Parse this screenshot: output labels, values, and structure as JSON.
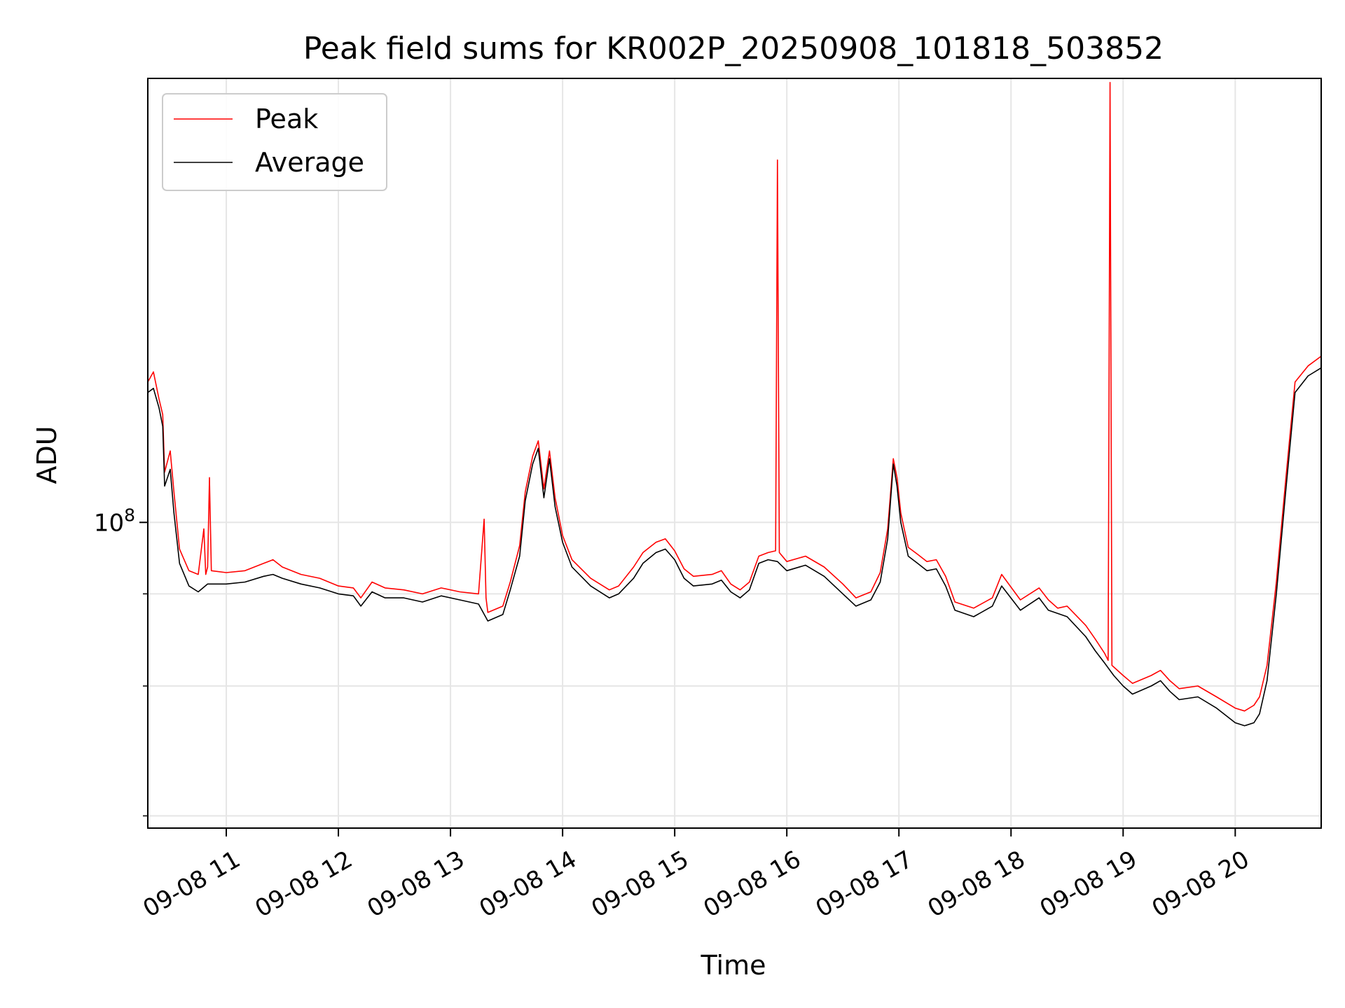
{
  "chart_data": {
    "type": "line",
    "title": "Peak field sums for KR002P_20250908_101818_503852",
    "xlabel": "Time",
    "ylabel": "ADU",
    "x_range": [
      "2025-09-08 10:18",
      "2025-09-08 20:46"
    ],
    "x_tick_labels": [
      "09-08 11",
      "09-08 12",
      "09-08 13",
      "09-08 14",
      "09-08 15",
      "09-08 16",
      "09-08 17",
      "09-08 18",
      "09-08 19",
      "09-08 20"
    ],
    "x_ticks": [
      "2025-09-08 11:00",
      "2025-09-08 12:00",
      "2025-09-08 13:00",
      "2025-09-08 14:00",
      "2025-09-08 15:00",
      "2025-09-08 16:00",
      "2025-09-08 17:00",
      "2025-09-08 18:00",
      "2025-09-08 19:00",
      "2025-09-08 20:00"
    ],
    "y_scale": "log",
    "ylim": [
      38500000,
      400000000
    ],
    "y_major_ticks": [
      {
        "value": 100000000,
        "base": "10",
        "exponent": "8"
      }
    ],
    "y_minor_ticks": [
      40000000,
      60000000,
      80000000
    ],
    "grid": true,
    "legend_position": "top-left",
    "legend": [
      "Peak",
      "Average"
    ],
    "colors": {
      "Peak": "#ff0000",
      "Average": "#000000"
    },
    "series": [
      {
        "name": "Average",
        "points": [
          [
            "2025-09-08 10:18",
            150000000
          ],
          [
            "2025-09-08 10:21",
            152000000
          ],
          [
            "2025-09-08 10:24",
            143000000
          ],
          [
            "2025-09-08 10:26",
            135000000
          ],
          [
            "2025-09-08 10:27",
            112000000
          ],
          [
            "2025-09-08 10:30",
            118000000
          ],
          [
            "2025-09-08 10:32",
            103000000
          ],
          [
            "2025-09-08 10:35",
            88000000
          ],
          [
            "2025-09-08 10:40",
            82000000
          ],
          [
            "2025-09-08 10:45",
            80500000
          ],
          [
            "2025-09-08 10:50",
            82500000
          ],
          [
            "2025-09-08 11:00",
            82500000
          ],
          [
            "2025-09-08 11:10",
            83000000
          ],
          [
            "2025-09-08 11:20",
            84500000
          ],
          [
            "2025-09-08 11:25",
            85000000
          ],
          [
            "2025-09-08 11:30",
            84000000
          ],
          [
            "2025-09-08 11:40",
            82500000
          ],
          [
            "2025-09-08 11:50",
            81500000
          ],
          [
            "2025-09-08 12:00",
            80000000
          ],
          [
            "2025-09-08 12:08",
            79500000
          ],
          [
            "2025-09-08 12:12",
            77000000
          ],
          [
            "2025-09-08 12:18",
            80500000
          ],
          [
            "2025-09-08 12:25",
            79000000
          ],
          [
            "2025-09-08 12:35",
            79000000
          ],
          [
            "2025-09-08 12:45",
            78000000
          ],
          [
            "2025-09-08 12:55",
            79500000
          ],
          [
            "2025-09-08 13:05",
            78500000
          ],
          [
            "2025-09-08 13:15",
            77500000
          ],
          [
            "2025-09-08 13:20",
            73500000
          ],
          [
            "2025-09-08 13:28",
            75000000
          ],
          [
            "2025-09-08 13:32",
            81000000
          ],
          [
            "2025-09-08 13:37",
            90000000
          ],
          [
            "2025-09-08 13:40",
            107000000
          ],
          [
            "2025-09-08 13:44",
            120000000
          ],
          [
            "2025-09-08 13:47",
            126000000
          ],
          [
            "2025-09-08 13:50",
            108000000
          ],
          [
            "2025-09-08 13:53",
            122000000
          ],
          [
            "2025-09-08 13:56",
            105000000
          ],
          [
            "2025-09-08 14:00",
            94000000
          ],
          [
            "2025-09-08 14:05",
            87000000
          ],
          [
            "2025-09-08 14:15",
            82000000
          ],
          [
            "2025-09-08 14:25",
            79000000
          ],
          [
            "2025-09-08 14:30",
            80000000
          ],
          [
            "2025-09-08 14:38",
            84000000
          ],
          [
            "2025-09-08 14:43",
            88000000
          ],
          [
            "2025-09-08 14:50",
            91000000
          ],
          [
            "2025-09-08 14:55",
            92000000
          ],
          [
            "2025-09-08 15:00",
            89000000
          ],
          [
            "2025-09-08 15:05",
            84000000
          ],
          [
            "2025-09-08 15:10",
            82000000
          ],
          [
            "2025-09-08 15:20",
            82500000
          ],
          [
            "2025-09-08 15:25",
            83500000
          ],
          [
            "2025-09-08 15:30",
            80500000
          ],
          [
            "2025-09-08 15:35",
            79000000
          ],
          [
            "2025-09-08 15:40",
            81000000
          ],
          [
            "2025-09-08 15:45",
            88000000
          ],
          [
            "2025-09-08 15:50",
            89000000
          ],
          [
            "2025-09-08 15:55",
            88500000
          ],
          [
            "2025-09-08 16:00",
            86000000
          ],
          [
            "2025-09-08 16:10",
            87500000
          ],
          [
            "2025-09-08 16:20",
            84500000
          ],
          [
            "2025-09-08 16:30",
            80000000
          ],
          [
            "2025-09-08 16:37",
            77000000
          ],
          [
            "2025-09-08 16:45",
            78500000
          ],
          [
            "2025-09-08 16:50",
            83000000
          ],
          [
            "2025-09-08 16:54",
            95000000
          ],
          [
            "2025-09-08 16:57",
            120000000
          ],
          [
            "2025-09-08 16:59",
            112000000
          ],
          [
            "2025-09-08 17:01",
            100000000
          ],
          [
            "2025-09-08 17:05",
            90000000
          ],
          [
            "2025-09-08 17:10",
            88000000
          ],
          [
            "2025-09-08 17:15",
            86000000
          ],
          [
            "2025-09-08 17:20",
            86500000
          ],
          [
            "2025-09-08 17:25",
            82000000
          ],
          [
            "2025-09-08 17:30",
            76000000
          ],
          [
            "2025-09-08 17:40",
            74500000
          ],
          [
            "2025-09-08 17:50",
            77000000
          ],
          [
            "2025-09-08 17:55",
            82000000
          ],
          [
            "2025-09-08 18:05",
            76000000
          ],
          [
            "2025-09-08 18:15",
            79000000
          ],
          [
            "2025-09-08 18:20",
            76000000
          ],
          [
            "2025-09-08 18:30",
            74500000
          ],
          [
            "2025-09-08 18:40",
            70000000
          ],
          [
            "2025-09-08 18:45",
            67000000
          ],
          [
            "2025-09-08 18:50",
            64500000
          ],
          [
            "2025-09-08 18:55",
            62000000
          ],
          [
            "2025-09-08 19:00",
            60000000
          ],
          [
            "2025-09-08 19:05",
            58500000
          ],
          [
            "2025-09-08 19:15",
            60000000
          ],
          [
            "2025-09-08 19:20",
            61000000
          ],
          [
            "2025-09-08 19:25",
            59000000
          ],
          [
            "2025-09-08 19:30",
            57500000
          ],
          [
            "2025-09-08 19:40",
            58000000
          ],
          [
            "2025-09-08 19:50",
            56000000
          ],
          [
            "2025-09-08 20:00",
            53500000
          ],
          [
            "2025-09-08 20:05",
            53000000
          ],
          [
            "2025-09-08 20:10",
            53500000
          ],
          [
            "2025-09-08 20:13",
            55000000
          ],
          [
            "2025-09-08 20:17",
            61000000
          ],
          [
            "2025-09-08 20:22",
            80000000
          ],
          [
            "2025-09-08 20:27",
            110000000
          ],
          [
            "2025-09-08 20:32",
            150000000
          ],
          [
            "2025-09-08 20:39",
            158000000
          ],
          [
            "2025-09-08 20:46",
            162000000
          ]
        ]
      },
      {
        "name": "Peak",
        "points": [
          [
            "2025-09-08 10:18",
            155000000
          ],
          [
            "2025-09-08 10:21",
            160000000
          ],
          [
            "2025-09-08 10:24",
            147000000
          ],
          [
            "2025-09-08 10:26",
            140000000
          ],
          [
            "2025-09-08 10:27",
            117000000
          ],
          [
            "2025-09-08 10:30",
            125000000
          ],
          [
            "2025-09-08 10:32",
            110000000
          ],
          [
            "2025-09-08 10:35",
            92000000
          ],
          [
            "2025-09-08 10:40",
            86000000
          ],
          [
            "2025-09-08 10:45",
            85000000
          ],
          [
            "2025-09-08 10:48",
            98000000
          ],
          [
            "2025-09-08 10:49",
            85000000
          ],
          [
            "2025-09-08 10:50",
            87000000
          ],
          [
            "2025-09-08 10:51",
            115000000
          ],
          [
            "2025-09-08 10:52",
            86000000
          ],
          [
            "2025-09-08 11:00",
            85500000
          ],
          [
            "2025-09-08 11:10",
            86000000
          ],
          [
            "2025-09-08 11:20",
            88000000
          ],
          [
            "2025-09-08 11:25",
            89000000
          ],
          [
            "2025-09-08 11:30",
            87000000
          ],
          [
            "2025-09-08 11:40",
            85000000
          ],
          [
            "2025-09-08 11:50",
            84000000
          ],
          [
            "2025-09-08 12:00",
            82000000
          ],
          [
            "2025-09-08 12:08",
            81500000
          ],
          [
            "2025-09-08 12:12",
            79000000
          ],
          [
            "2025-09-08 12:18",
            83000000
          ],
          [
            "2025-09-08 12:25",
            81500000
          ],
          [
            "2025-09-08 12:35",
            81000000
          ],
          [
            "2025-09-08 12:45",
            80000000
          ],
          [
            "2025-09-08 12:55",
            81500000
          ],
          [
            "2025-09-08 13:05",
            80500000
          ],
          [
            "2025-09-08 13:15",
            80000000
          ],
          [
            "2025-09-08 13:18",
            101000000
          ],
          [
            "2025-09-08 13:19",
            79000000
          ],
          [
            "2025-09-08 13:20",
            75500000
          ],
          [
            "2025-09-08 13:28",
            77000000
          ],
          [
            "2025-09-08 13:32",
            83000000
          ],
          [
            "2025-09-08 13:37",
            93000000
          ],
          [
            "2025-09-08 13:40",
            110000000
          ],
          [
            "2025-09-08 13:44",
            123000000
          ],
          [
            "2025-09-08 13:47",
            129000000
          ],
          [
            "2025-09-08 13:50",
            111000000
          ],
          [
            "2025-09-08 13:53",
            125000000
          ],
          [
            "2025-09-08 13:56",
            108000000
          ],
          [
            "2025-09-08 14:00",
            96000000
          ],
          [
            "2025-09-08 14:05",
            89000000
          ],
          [
            "2025-09-08 14:15",
            84000000
          ],
          [
            "2025-09-08 14:25",
            81000000
          ],
          [
            "2025-09-08 14:30",
            82000000
          ],
          [
            "2025-09-08 14:38",
            87000000
          ],
          [
            "2025-09-08 14:43",
            91000000
          ],
          [
            "2025-09-08 14:50",
            94000000
          ],
          [
            "2025-09-08 14:55",
            95000000
          ],
          [
            "2025-09-08 15:00",
            91500000
          ],
          [
            "2025-09-08 15:05",
            86500000
          ],
          [
            "2025-09-08 15:10",
            84500000
          ],
          [
            "2025-09-08 15:20",
            85000000
          ],
          [
            "2025-09-08 15:25",
            86000000
          ],
          [
            "2025-09-08 15:30",
            82500000
          ],
          [
            "2025-09-08 15:35",
            81000000
          ],
          [
            "2025-09-08 15:40",
            83000000
          ],
          [
            "2025-09-08 15:45",
            90000000
          ],
          [
            "2025-09-08 15:50",
            91000000
          ],
          [
            "2025-09-08 15:54",
            91500000
          ],
          [
            "2025-09-08 15:55",
            310000000
          ],
          [
            "2025-09-08 15:56",
            91000000
          ],
          [
            "2025-09-08 16:00",
            88500000
          ],
          [
            "2025-09-08 16:10",
            90000000
          ],
          [
            "2025-09-08 16:20",
            87000000
          ],
          [
            "2025-09-08 16:30",
            82500000
          ],
          [
            "2025-09-08 16:37",
            79000000
          ],
          [
            "2025-09-08 16:45",
            80500000
          ],
          [
            "2025-09-08 16:50",
            85500000
          ],
          [
            "2025-09-08 16:54",
            98000000
          ],
          [
            "2025-09-08 16:57",
            122000000
          ],
          [
            "2025-09-08 16:59",
            115000000
          ],
          [
            "2025-09-08 17:01",
            103000000
          ],
          [
            "2025-09-08 17:05",
            92500000
          ],
          [
            "2025-09-08 17:10",
            90500000
          ],
          [
            "2025-09-08 17:15",
            88500000
          ],
          [
            "2025-09-08 17:20",
            89000000
          ],
          [
            "2025-09-08 17:25",
            84500000
          ],
          [
            "2025-09-08 17:30",
            78000000
          ],
          [
            "2025-09-08 17:40",
            76500000
          ],
          [
            "2025-09-08 17:50",
            79000000
          ],
          [
            "2025-09-08 17:55",
            85000000
          ],
          [
            "2025-09-08 18:05",
            78500000
          ],
          [
            "2025-09-08 18:15",
            81500000
          ],
          [
            "2025-09-08 18:20",
            78500000
          ],
          [
            "2025-09-08 18:25",
            76500000
          ],
          [
            "2025-09-08 18:30",
            77000000
          ],
          [
            "2025-09-08 18:40",
            72500000
          ],
          [
            "2025-09-08 18:45",
            69500000
          ],
          [
            "2025-09-08 18:50",
            66500000
          ],
          [
            "2025-09-08 18:52",
            65000000
          ],
          [
            "2025-09-08 18:53",
            395000000
          ],
          [
            "2025-09-08 18:54",
            64000000
          ],
          [
            "2025-09-08 19:00",
            62000000
          ],
          [
            "2025-09-08 19:05",
            60500000
          ],
          [
            "2025-09-08 19:15",
            62000000
          ],
          [
            "2025-09-08 19:20",
            63000000
          ],
          [
            "2025-09-08 19:25",
            61000000
          ],
          [
            "2025-09-08 19:30",
            59500000
          ],
          [
            "2025-09-08 19:40",
            60000000
          ],
          [
            "2025-09-08 19:50",
            58000000
          ],
          [
            "2025-09-08 20:00",
            56000000
          ],
          [
            "2025-09-08 20:05",
            55500000
          ],
          [
            "2025-09-08 20:10",
            56500000
          ],
          [
            "2025-09-08 20:13",
            58000000
          ],
          [
            "2025-09-08 20:17",
            64000000
          ],
          [
            "2025-09-08 20:22",
            83000000
          ],
          [
            "2025-09-08 20:27",
            114000000
          ],
          [
            "2025-09-08 20:32",
            155000000
          ],
          [
            "2025-09-08 20:39",
            163000000
          ],
          [
            "2025-09-08 20:46",
            168000000
          ]
        ]
      }
    ]
  }
}
